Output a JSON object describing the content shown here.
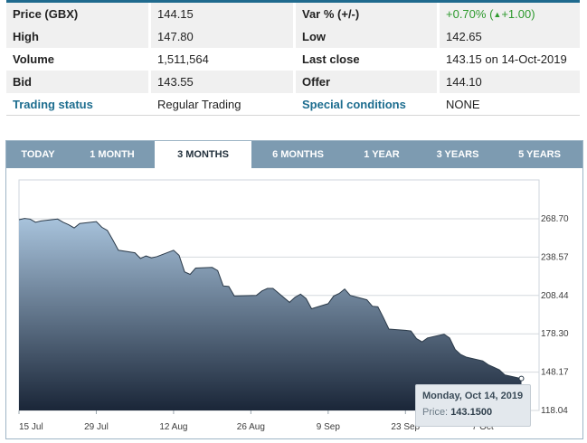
{
  "quote": {
    "rows": [
      {
        "l1": "Price (GBX)",
        "v1": "144.15",
        "l2": "Var % (+/-)",
        "v2": "+0.70% (",
        "v2_arrow": "▲",
        "v2_tail": " +1.00)"
      },
      {
        "l1": "High",
        "v1": "147.80",
        "l2": "Low",
        "v2": "142.65"
      },
      {
        "l1": "Volume",
        "v1": "1,511,564",
        "l2": "Last close",
        "v2": "143.15 on 14-Oct-2019"
      },
      {
        "l1": "Bid",
        "v1": "143.55",
        "l2": "Offer",
        "v2": "144.10"
      },
      {
        "l1": "Trading status",
        "v1": "Regular Trading",
        "l2": "Special conditions",
        "v2": "NONE"
      }
    ]
  },
  "tabs": [
    "TODAY",
    "1 MONTH",
    "3 MONTHS",
    "6 MONTHS",
    "1 YEAR",
    "3 YEARS",
    "5 YEARS"
  ],
  "active_tab": "3 MONTHS",
  "tooltip": {
    "date": "Monday, Oct 14, 2019",
    "price_label": "Price:",
    "price_value": "143.1500"
  },
  "colors": {
    "accent": "#1f6a8e",
    "tab_bar": "#7d9bb1",
    "positive": "#2e9a2e",
    "area_top": "#a8c3dc",
    "area_bottom": "#1a2638"
  },
  "chart_data": {
    "type": "area",
    "y_ticks": [
      "268.70",
      "238.57",
      "208.44",
      "178.30",
      "148.17",
      "118.04"
    ],
    "x_ticks": [
      "15 Jul",
      "29 Jul",
      "12 Aug",
      "26 Aug",
      "9 Sep",
      "23 Sep",
      "7 Oct"
    ],
    "ylim": [
      118.04,
      268.7
    ],
    "grid": true,
    "series": [
      {
        "x": [
          "2019-07-15",
          "2019-07-16",
          "2019-07-17",
          "2019-07-18",
          "2019-07-19",
          "2019-07-22",
          "2019-07-23",
          "2019-07-24",
          "2019-07-25",
          "2019-07-26",
          "2019-07-29",
          "2019-07-30",
          "2019-07-31",
          "2019-08-01",
          "2019-08-02",
          "2019-08-05",
          "2019-08-06",
          "2019-08-07",
          "2019-08-08",
          "2019-08-09",
          "2019-08-12",
          "2019-08-13",
          "2019-08-14",
          "2019-08-15",
          "2019-08-16",
          "2019-08-19",
          "2019-08-20",
          "2019-08-21",
          "2019-08-22",
          "2019-08-23",
          "2019-08-27",
          "2019-08-28",
          "2019-08-29",
          "2019-08-30",
          "2019-09-02",
          "2019-09-03",
          "2019-09-04",
          "2019-09-05",
          "2019-09-06",
          "2019-09-09",
          "2019-09-10",
          "2019-09-11",
          "2019-09-12",
          "2019-09-13",
          "2019-09-16",
          "2019-09-17",
          "2019-09-18",
          "2019-09-19",
          "2019-09-20",
          "2019-09-23",
          "2019-09-24",
          "2019-09-25",
          "2019-09-26",
          "2019-09-27",
          "2019-09-30",
          "2019-10-01",
          "2019-10-02",
          "2019-10-03",
          "2019-10-04",
          "2019-10-07",
          "2019-10-08",
          "2019-10-09",
          "2019-10-10",
          "2019-10-11",
          "2019-10-14"
        ],
        "values": [
          268.0,
          269.0,
          268.5,
          266.0,
          267.0,
          268.5,
          266.0,
          264.0,
          261.5,
          265.0,
          266.5,
          262.0,
          259.5,
          252.0,
          244.0,
          242.0,
          237.5,
          239.5,
          238.0,
          239.0,
          244.0,
          240.0,
          227.0,
          225.0,
          230.0,
          230.5,
          228.0,
          216.0,
          215.5,
          208.0,
          208.5,
          212.0,
          214.0,
          214.0,
          203.0,
          207.0,
          209.5,
          206.0,
          198.0,
          202.0,
          208.0,
          210.0,
          213.5,
          208.5,
          205.0,
          200.0,
          199.5,
          191.0,
          182.0,
          181.0,
          180.5,
          174.5,
          172.0,
          175.0,
          178.0,
          175.0,
          166.0,
          162.0,
          160.0,
          157.0,
          154.0,
          152.0,
          150.0,
          146.0,
          143.15
        ]
      }
    ]
  }
}
